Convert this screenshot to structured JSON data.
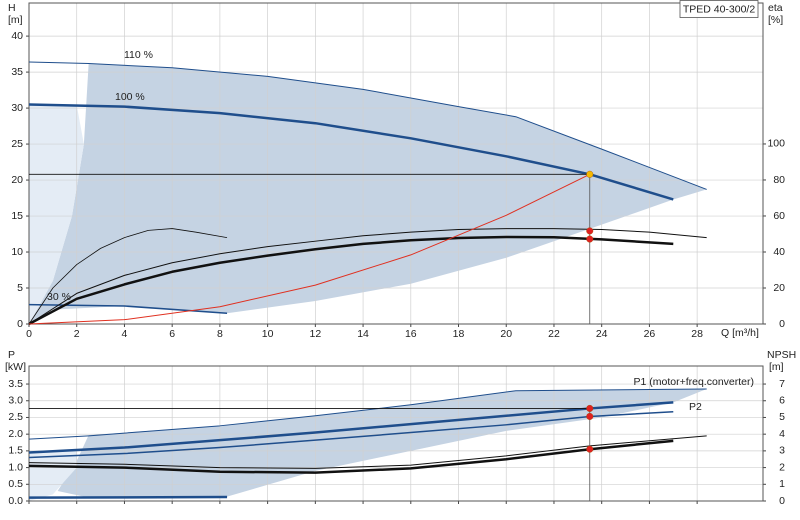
{
  "chart_data": [
    {
      "type": "line",
      "title": "TPED 40-300/2",
      "ylabel": "H",
      "yunit": "[m]",
      "y2label": "eta",
      "y2unit": "[%]",
      "xlabel": "Q [m³/h]",
      "xlim": [
        0,
        30.76
      ],
      "xticks": [
        0,
        2,
        4,
        6,
        8,
        10,
        12,
        14,
        16,
        18,
        20,
        22,
        24,
        26,
        28
      ],
      "ylim": [
        0,
        44.6
      ],
      "yticks": [
        0,
        5,
        10,
        15,
        20,
        25,
        30,
        35,
        40
      ],
      "y2lim": [
        0,
        178.3
      ],
      "y2ticks": [
        0,
        20,
        40,
        60,
        80,
        100
      ],
      "grid": true,
      "areas": [
        {
          "color": "#c5d3e3",
          "x": [
            2.5,
            6,
            10,
            14,
            18,
            20.4,
            24,
            28.4,
            27,
            24,
            20,
            16,
            12,
            8.3,
            4,
            1,
            0,
            1,
            1.8,
            2.3
          ],
          "values": [
            36.2,
            35.6,
            34.4,
            32.6,
            30.2,
            28.8,
            24.3,
            18.7,
            17.3,
            13.8,
            9.2,
            5.6,
            3.2,
            1.5,
            2.5,
            2.0,
            0,
            6,
            15,
            25
          ]
        },
        {
          "color": "#e4ecf5",
          "x": [
            0,
            0,
            2,
            2.3,
            1.8,
            1
          ],
          "values": [
            0,
            30.5,
            30.4,
            25,
            15,
            6
          ]
        }
      ],
      "series": [
        {
          "name": "110 %",
          "color": "#1f4e8c",
          "width": 1,
          "x": [
            0,
            2.5,
            6,
            10,
            14,
            18,
            20.4,
            24,
            28.4
          ],
          "values": [
            36.4,
            36.2,
            35.6,
            34.4,
            32.6,
            30.2,
            28.8,
            24.3,
            18.7
          ]
        },
        {
          "name": "100 %",
          "color": "#1f4e8c",
          "width": 2.5,
          "x": [
            0,
            4,
            8,
            12,
            16,
            20,
            23.5,
            27
          ],
          "values": [
            30.5,
            30.2,
            29.3,
            27.9,
            25.8,
            23.3,
            20.8,
            17.3
          ]
        },
        {
          "name": "30 %",
          "color": "#1f4e8c",
          "width": 1.5,
          "x": [
            0,
            4,
            8.3
          ],
          "values": [
            2.7,
            2.5,
            1.5
          ]
        },
        {
          "color": "#111111",
          "width": 1,
          "axis": "y2",
          "x": [
            0,
            2,
            4,
            6,
            8,
            10,
            12,
            14,
            16,
            18,
            20,
            22,
            24,
            26,
            28.4
          ],
          "values": [
            0,
            17,
            27,
            34,
            39,
            43,
            46,
            49,
            51,
            52.5,
            53,
            53,
            52.5,
            51,
            48
          ]
        },
        {
          "color": "#111111",
          "width": 2.5,
          "axis": "y2",
          "x": [
            0,
            2,
            4,
            6,
            8,
            10,
            12,
            14,
            16,
            18,
            20,
            22,
            24,
            27
          ],
          "values": [
            0,
            14,
            22,
            29,
            34,
            38,
            41.5,
            44.5,
            46.5,
            47.8,
            48.3,
            48.2,
            47,
            44.5
          ]
        },
        {
          "color": "#111111",
          "width": 0.8,
          "axis": "y2",
          "x": [
            0,
            1,
            2,
            3,
            4,
            5,
            6,
            7,
            8.3
          ],
          "values": [
            0,
            20,
            33,
            42,
            48,
            52,
            53,
            51,
            48
          ]
        },
        {
          "color": "#e03020",
          "width": 1,
          "x": [
            0,
            4,
            8,
            12,
            16,
            20,
            23.5
          ],
          "values": [
            0,
            0.6,
            2.4,
            5.4,
            9.6,
            15.1,
            20.8
          ]
        }
      ],
      "points": [
        {
          "x": 23.5,
          "y": 20.8,
          "color": "#f5b800"
        },
        {
          "x": 23.5,
          "y": 51.7,
          "color": "#e02020",
          "axis": "y2"
        },
        {
          "x": 23.5,
          "y": 47.2,
          "color": "#e02020",
          "axis": "y2"
        }
      ]
    },
    {
      "type": "line",
      "ylabel": "P",
      "yunit": "[kW]",
      "y2label": "NPSH",
      "y2unit": "[m]",
      "xlim": [
        0,
        30.76
      ],
      "xticks": [
        0,
        2,
        4,
        6,
        8,
        10,
        12,
        14,
        16,
        18,
        20,
        22,
        24,
        26,
        28
      ],
      "ylim": [
        0,
        4.04
      ],
      "yticks": [
        {
          "value": 0,
          "label": "0.0"
        },
        {
          "value": 0.5,
          "label": "0.5"
        },
        {
          "value": 1,
          "label": "1.0"
        },
        {
          "value": 1.5,
          "label": "1.5"
        },
        {
          "value": 2,
          "label": "2.0"
        },
        {
          "value": 2.5,
          "label": "2.5"
        },
        {
          "value": 3,
          "label": "3.0"
        },
        {
          "value": 3.5,
          "label": "3.5"
        }
      ],
      "y2lim": [
        0,
        8.08
      ],
      "y2ticks": [
        0,
        1,
        2,
        3,
        4,
        5,
        6,
        7
      ],
      "grid": true,
      "areas": [
        {
          "color": "#c5d3e3",
          "x": [
            2.5,
            8,
            12,
            16,
            20.4,
            28.4,
            27,
            24,
            20,
            16,
            12,
            8.3,
            2.5,
            1.2,
            2
          ],
          "values": [
            1.97,
            2.25,
            2.55,
            2.88,
            3.3,
            3.35,
            2.95,
            2.5,
            2.1,
            1.5,
            0.9,
            0.13,
            0.1,
            0.3,
            1.2
          ]
        },
        {
          "color": "#e4ecf5",
          "x": [
            0,
            0,
            2,
            2,
            1
          ],
          "values": [
            0,
            1.45,
            1.5,
            1.0,
            0.2
          ]
        }
      ],
      "series": [
        {
          "name": "P1 (motor+freq.converter)",
          "color": "#1f4e8c",
          "width": 1,
          "x": [
            0,
            2.5,
            8,
            12,
            16,
            20.4,
            28.4
          ],
          "values": [
            1.85,
            1.95,
            2.25,
            2.55,
            2.88,
            3.3,
            3.35
          ]
        },
        {
          "color": "#1f4e8c",
          "width": 2.5,
          "x": [
            0,
            4,
            8,
            12,
            16,
            20,
            23.5,
            27
          ],
          "values": [
            1.45,
            1.6,
            1.82,
            2.05,
            2.3,
            2.55,
            2.77,
            2.95
          ]
        },
        {
          "name": "P2",
          "color": "#1f4e8c",
          "width": 1.5,
          "x": [
            0,
            4,
            8,
            12,
            16,
            20,
            23.5,
            27
          ],
          "values": [
            1.3,
            1.42,
            1.6,
            1.82,
            2.05,
            2.28,
            2.53,
            2.67
          ]
        },
        {
          "color": "#1f4e8c",
          "width": 2.5,
          "x": [
            0,
            8.3
          ],
          "values": [
            0.1,
            0.12
          ]
        },
        {
          "color": "#111111",
          "width": 1,
          "axis": "y2",
          "x": [
            0,
            4,
            8,
            12,
            16,
            20,
            23.5,
            28.4
          ],
          "values": [
            2.3,
            2.2,
            2.0,
            1.95,
            2.15,
            2.7,
            3.3,
            3.9
          ]
        },
        {
          "color": "#111111",
          "width": 2.5,
          "axis": "y2",
          "x": [
            0,
            4,
            8,
            12,
            16,
            20,
            23.5,
            27
          ],
          "values": [
            2.1,
            2.0,
            1.75,
            1.7,
            1.95,
            2.5,
            3.1,
            3.6
          ]
        }
      ],
      "points": [
        {
          "x": 23.5,
          "y": 2.77,
          "color": "#e02020"
        },
        {
          "x": 23.5,
          "y": 2.53,
          "color": "#e02020"
        },
        {
          "x": 23.5,
          "y": 3.1,
          "color": "#e02020",
          "axis": "y2"
        }
      ]
    }
  ]
}
